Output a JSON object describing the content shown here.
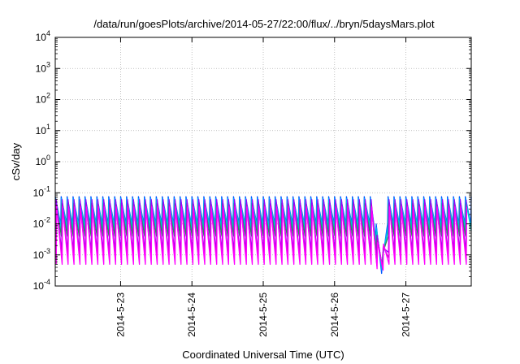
{
  "chart_data": {
    "type": "line",
    "title": "/data/run/goesPlots/archive/2014-05-27/22:00/flux/../bryn/5daysMars.plot",
    "xlabel": "Coordinated Universal Time (UTC)",
    "ylabel": "cSv/day",
    "yscale": "log",
    "ylim": [
      0.0001,
      10000
    ],
    "xlim": [
      "2014-05-22 02:00",
      "2014-05-27 22:00"
    ],
    "grid": true,
    "x_ticks": [
      "2014-5-23",
      "2014-5-24",
      "2014-5-25",
      "2014-5-26",
      "2014-5-27"
    ],
    "y_ticks": [
      {
        "base": "10",
        "exp": "-4"
      },
      {
        "base": "10",
        "exp": "-3"
      },
      {
        "base": "10",
        "exp": "-2"
      },
      {
        "base": "10",
        "exp": "-1"
      },
      {
        "base": "10",
        "exp": "0"
      },
      {
        "base": "10",
        "exp": "1"
      },
      {
        "base": "10",
        "exp": "2"
      },
      {
        "base": "10",
        "exp": "3"
      },
      {
        "base": "10",
        "exp": "4"
      }
    ],
    "pattern": {
      "sawtooth_period_hours": 2,
      "dropout_dip": {
        "time": "2014-05-26 15:30",
        "min_value": 0.00013
      }
    },
    "series": [
      {
        "color": "#0055ff",
        "peak": 0.075,
        "trough": 0.01
      },
      {
        "color": "#00aaff",
        "peak": 0.065,
        "trough": 0.008
      },
      {
        "color": "#00cccc",
        "peak": 0.055,
        "trough": 0.006
      },
      {
        "color": "#2e8b57",
        "peak": 0.045,
        "trough": 0.004
      },
      {
        "color": "#9900ff",
        "peak": 0.06,
        "trough": 0.0012
      },
      {
        "color": "#cc00cc",
        "peak": 0.04,
        "trough": 0.0008
      },
      {
        "color": "#ff00ff",
        "peak": 0.035,
        "trough": 0.0005
      }
    ]
  }
}
